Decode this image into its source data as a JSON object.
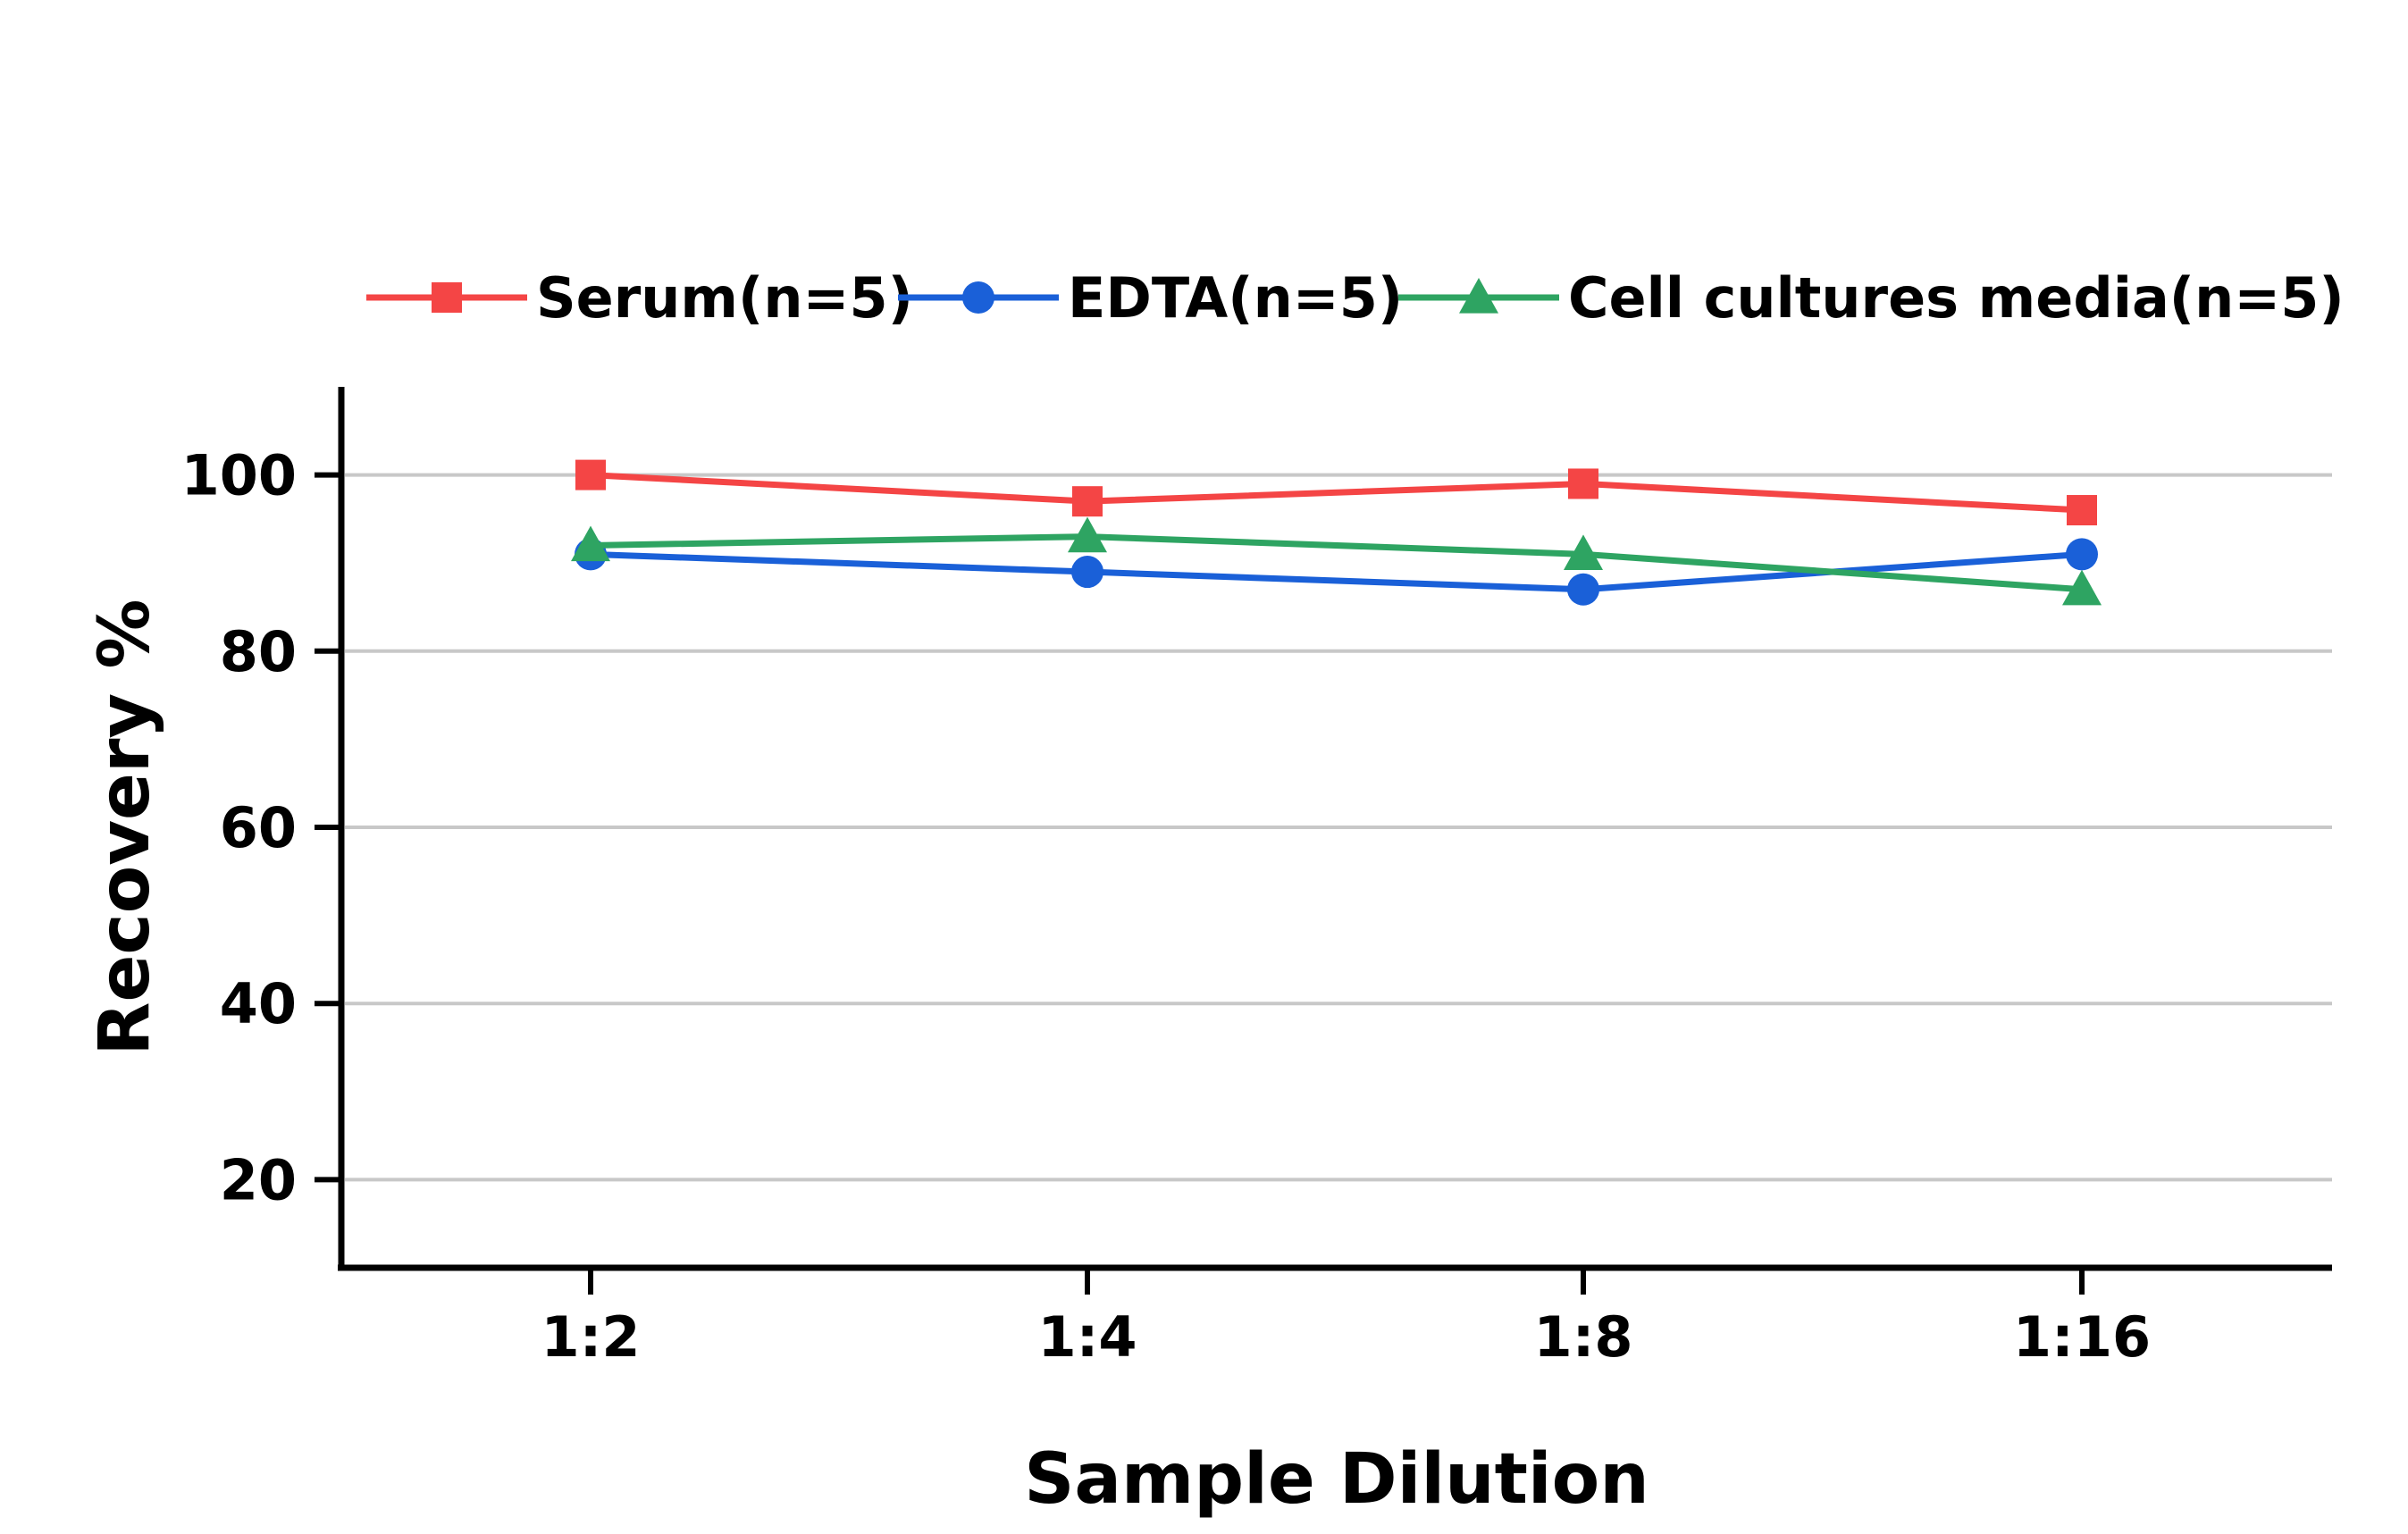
{
  "chart_data": {
    "type": "line",
    "categories": [
      "1:2",
      "1:4",
      "1:8",
      "1:16"
    ],
    "series": [
      {
        "name": "Serum(n=5)",
        "values": [
          100,
          97,
          99,
          96
        ],
        "color": "#f44545",
        "marker": "square"
      },
      {
        "name": "EDTA(n=5)",
        "values": [
          91,
          89,
          87,
          91
        ],
        "color": "#1a60d8",
        "marker": "circle"
      },
      {
        "name": "Cell cultures media(n=5)",
        "values": [
          92,
          93,
          91,
          87
        ],
        "color": "#2ea462",
        "marker": "triangle"
      }
    ],
    "title": "",
    "xlabel": "Sample Dilution",
    "ylabel": "Recovery %",
    "ylim": [
      10,
      110
    ],
    "yticks": [
      20,
      40,
      60,
      80,
      100
    ],
    "grid": "horizontal",
    "legend": "top"
  }
}
